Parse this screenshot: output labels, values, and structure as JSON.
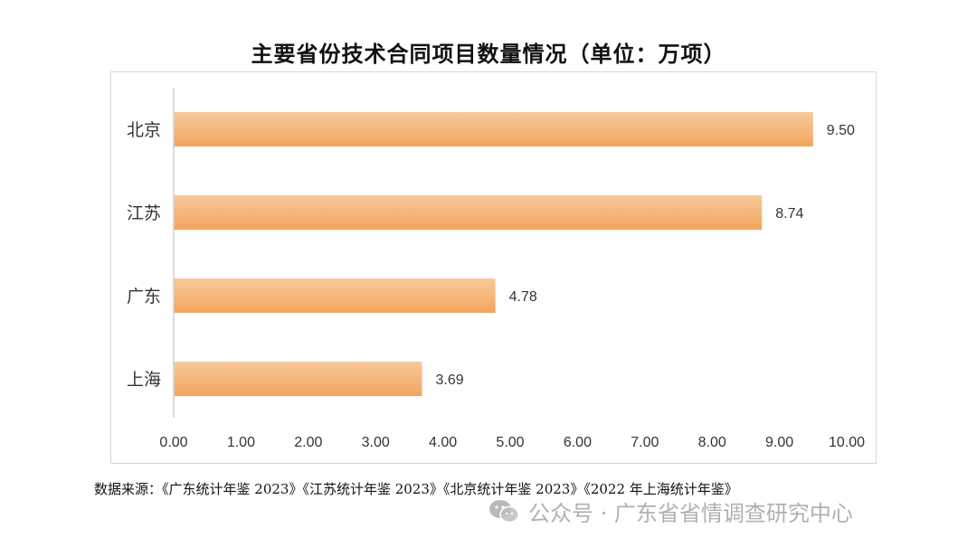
{
  "colors": {
    "bar_top": "#f8c99a",
    "bar_bottom": "#f2a55e",
    "axis": "#d0d0d0",
    "text": "#333333"
  },
  "chart_data": {
    "type": "bar",
    "orientation": "horizontal",
    "title": "主要省份技术合同项目数量情况（单位：万项）",
    "categories": [
      "北京",
      "江苏",
      "广东",
      "上海"
    ],
    "values": [
      9.5,
      8.74,
      4.78,
      3.69
    ],
    "value_labels": [
      "9.50",
      "8.74",
      "4.78",
      "3.69"
    ],
    "xlim": [
      0,
      10
    ],
    "x_ticks": [
      "0.00",
      "1.00",
      "2.00",
      "3.00",
      "4.00",
      "5.00",
      "6.00",
      "7.00",
      "8.00",
      "9.00",
      "10.00"
    ],
    "grid": false,
    "legend": "none"
  },
  "footer": {
    "source": "数据来源：《广东统计年鉴 2023》《江苏统计年鉴 2023》《北京统计年鉴 2023》《2022 年上海统计年鉴》",
    "watermark_text": "公众号 · 广东省省情调查研究中心",
    "watermark_icon": "wechat-icon"
  }
}
